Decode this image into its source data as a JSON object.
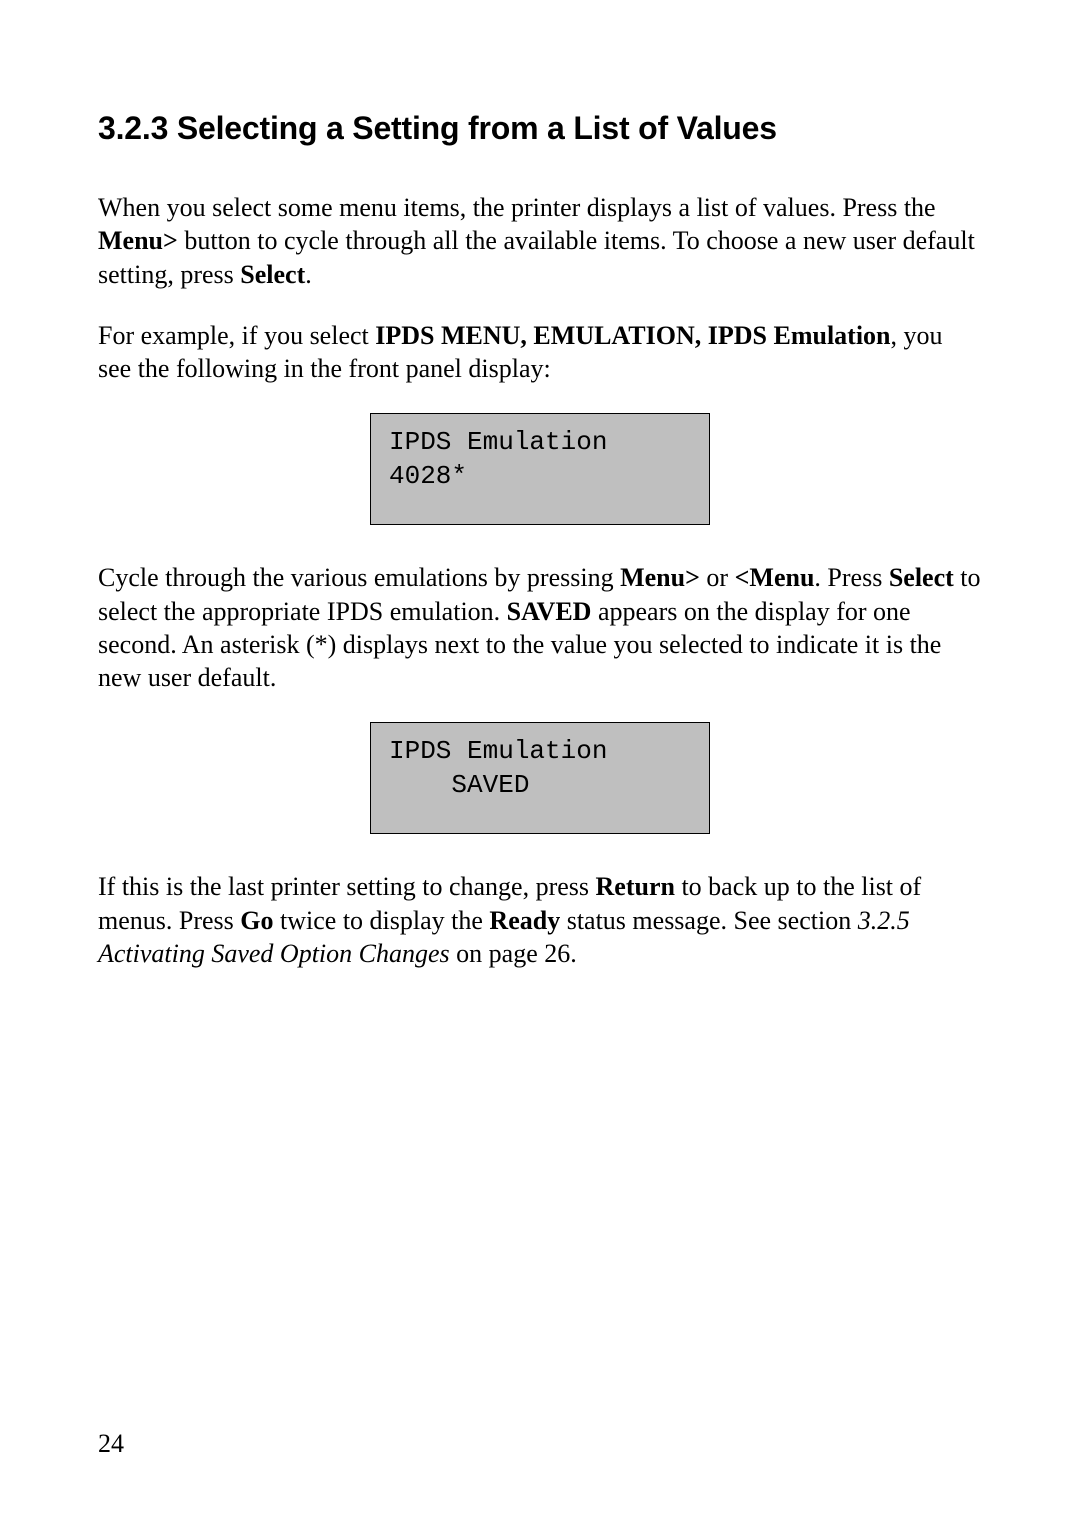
{
  "heading": "3.2.3 Selecting a Setting from a List of Values",
  "para1": {
    "t1": "When you select some menu items, the printer displays a list of values. Press the ",
    "b1": "Menu>",
    "t2": " button to cycle through all the available items. To choose a new user default setting, press ",
    "b2": "Select",
    "t3": "."
  },
  "para2": {
    "t1": "For example, if you select ",
    "b1": "IPDS MENU, EMULATION, IPDS Emulation",
    "t2": ", you see the following in the front panel display:"
  },
  "display1": {
    "line1": "IPDS Emulation",
    "line2": "4028*",
    "background_color": "#bfbfbf",
    "border_color": "#000000",
    "font_family": "Courier New"
  },
  "para3": {
    "t1": "Cycle through the various emulations by pressing ",
    "b1": "Menu>",
    "t2": " or ",
    "b2": "<Menu",
    "t3": ". Press ",
    "b3": "Select",
    "t4": " to select the appropriate IPDS emulation. ",
    "b4": "SAVED",
    "t5": " appears on the display for one second. An asterisk (*) displays next to the value you selected to indicate it is the new user default."
  },
  "display2": {
    "line1": "IPDS Emulation",
    "line2": "    SAVED",
    "background_color": "#bfbfbf",
    "border_color": "#000000",
    "font_family": "Courier New"
  },
  "para4": {
    "t1": "If this is the last printer setting to change, press ",
    "b1": "Return",
    "t2": " to back up to the list of menus. Press ",
    "b2": "Go",
    "t3": " twice to display the ",
    "b3": "Ready",
    "t4": " status message. See section ",
    "i1": "3.2.5 Activating Saved Option Changes",
    "t5": " on page 26."
  },
  "page_number": "24",
  "colors": {
    "page_bg": "#ffffff",
    "text": "#000000",
    "display_bg": "#bfbfbf"
  },
  "typography": {
    "body_font": "Times New Roman",
    "heading_font": "Arial",
    "display_font": "Courier New",
    "heading_size_pt": 24,
    "body_size_pt": 20,
    "display_size_pt": 20
  }
}
